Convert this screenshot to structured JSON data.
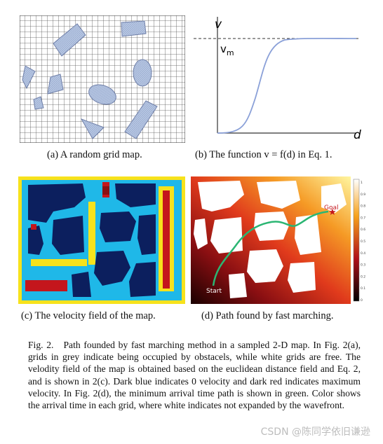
{
  "panels": {
    "a": {
      "caption": "(a) A random grid map."
    },
    "b": {
      "caption": "(b) The function v = f(d) in Eq. 1.",
      "y_label": "v",
      "vm_label": "v",
      "vm_sub": "m",
      "x_label": "d"
    },
    "c": {
      "caption": "(c) The velocity field of the map."
    },
    "d": {
      "caption": "(d) Path found by fast marching.",
      "start_label": "Start",
      "goal_label": "Goal",
      "colorbar_ticks": [
        "1",
        "0.9",
        "0.8",
        "0.7",
        "0.6",
        "0.5",
        "0.4",
        "0.3",
        "0.2",
        "0.1",
        "0"
      ]
    }
  },
  "caption": {
    "label": "Fig. 2.",
    "text": "Path founded by fast marching method in a sampled 2-D map. In Fig. 2(a), grids in grey indicate being occupied by obstacels, while white grids are free. The velodity field of the map is obtained based on the euclidean distance field and Eq. 2, and is shown in 2(c). Dark blue indicates 0 velocity and dark red indicates maximum velocity. In Fig. 2(d), the minimum arrival time path is shown in green. Color shows the arrival time in each grid, where white indicates not expanded by the wavefront."
  },
  "watermark": "CSDN @陈同学依旧谦逊",
  "colors": {
    "dark_blue": "#0c1f5e",
    "cyan": "#1fb8e8",
    "yellow": "#f7e21c",
    "red": "#c4161c",
    "dark_red": "#8a0f12",
    "path_green": "#2bb673"
  }
}
